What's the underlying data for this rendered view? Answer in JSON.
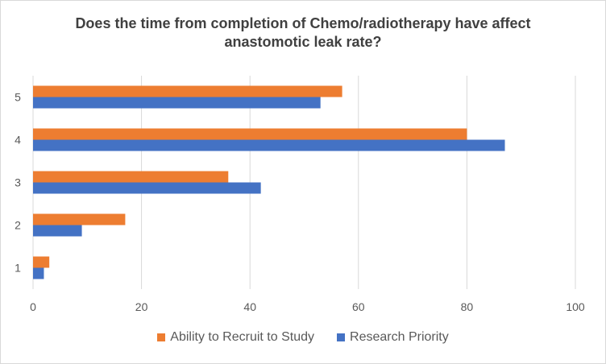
{
  "chart_data": {
    "type": "bar",
    "orientation": "horizontal",
    "title": [
      "Does the time from completion of Chemo/radiotherapy have affect",
      "anastomotic leak rate?"
    ],
    "categories": [
      "1",
      "2",
      "3",
      "4",
      "5"
    ],
    "series": [
      {
        "name": "Ability to Recruit to Study",
        "color": "#ED7D31",
        "values": [
          3,
          17,
          36,
          80,
          57
        ]
      },
      {
        "name": "Research Priority",
        "color": "#4472C4",
        "values": [
          2,
          9,
          42,
          87,
          53
        ]
      }
    ],
    "xlim": [
      0,
      100
    ],
    "xticks": [
      "0",
      "20",
      "40",
      "60",
      "80",
      "100"
    ],
    "grid": true,
    "legend_position": "bottom",
    "gridline_color": "#d9d9d9"
  }
}
